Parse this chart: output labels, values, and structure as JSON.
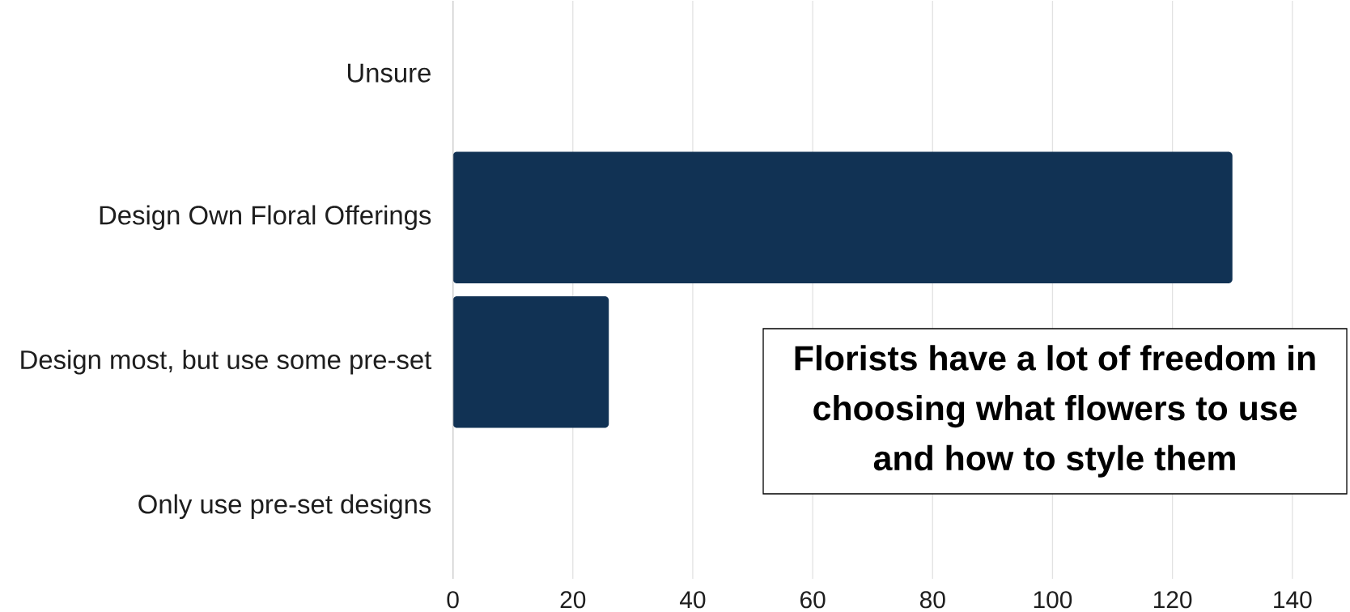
{
  "chart_data": {
    "type": "bar",
    "orientation": "horizontal",
    "categories": [
      "Unsure",
      "Design Own Floral Offerings",
      "Design most, but use some pre-set",
      "Only use pre-set designs"
    ],
    "values": [
      0,
      130,
      26,
      0
    ],
    "color": "#113254",
    "xlim": [
      0,
      140
    ],
    "xticks": [
      0,
      20,
      40,
      60,
      80,
      100,
      120,
      140
    ],
    "grid": "x",
    "annotations": [
      "Florists have a lot of freedom in choosing what flowers to use and how to style them"
    ]
  }
}
